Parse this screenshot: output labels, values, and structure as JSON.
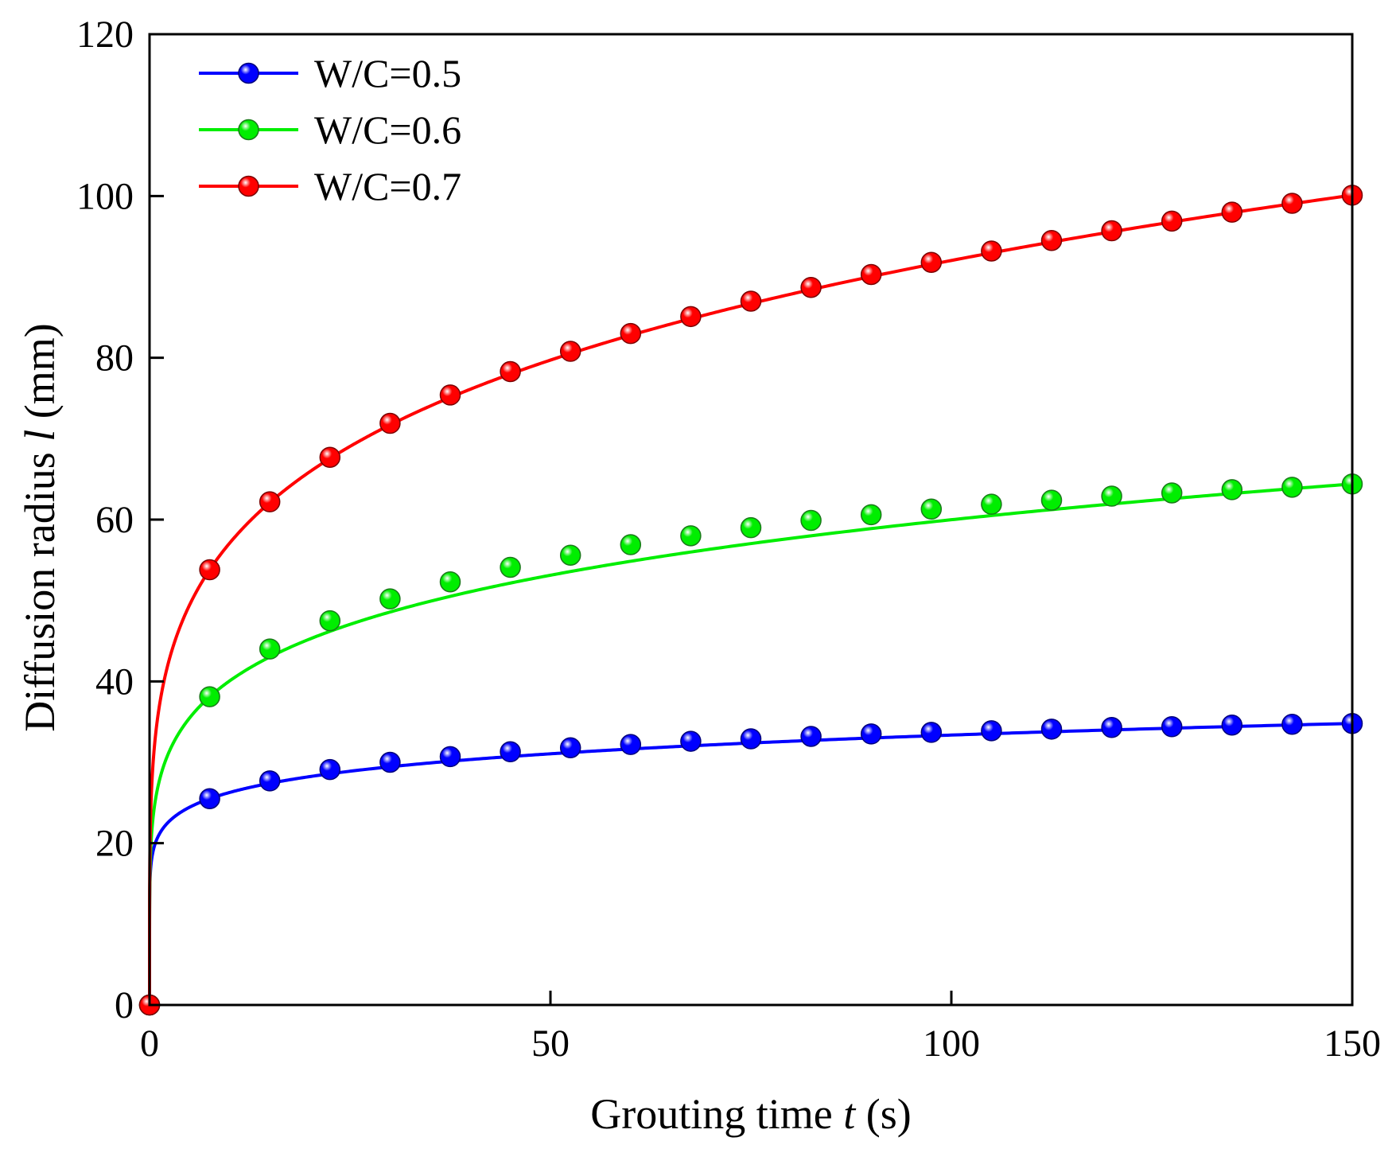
{
  "chart_data": {
    "type": "line",
    "title": "",
    "xlabel": {
      "prefix": "Grouting time ",
      "var": "t",
      "suffix": " (s)"
    },
    "ylabel": {
      "prefix": "Diffusion radius ",
      "var": "l",
      "suffix": " (mm)"
    },
    "xlim": [
      0,
      150
    ],
    "ylim": [
      0,
      120
    ],
    "xticks": [
      0,
      50,
      100,
      150
    ],
    "yticks": [
      0,
      20,
      40,
      60,
      80,
      100,
      120
    ],
    "grid": false,
    "legend_position": "top-left",
    "x": [
      0,
      7.5,
      15,
      22.5,
      30,
      37.5,
      45,
      52.5,
      60,
      67.5,
      75,
      82.5,
      90,
      97.5,
      105,
      112.5,
      120,
      127.5,
      135,
      142.5,
      150
    ],
    "series": [
      {
        "name": "W/C=0.5",
        "color": "#0000ff",
        "values": [
          0,
          25.5,
          27.7,
          29.1,
          30.0,
          30.7,
          31.3,
          31.8,
          32.2,
          32.6,
          32.9,
          33.2,
          33.5,
          33.7,
          33.9,
          34.1,
          34.3,
          34.4,
          34.6,
          34.7,
          34.8
        ]
      },
      {
        "name": "W/C=0.6",
        "color": "#00ee00",
        "values": [
          0,
          38.1,
          44.0,
          47.5,
          50.2,
          52.3,
          54.1,
          55.6,
          56.9,
          58.0,
          59.0,
          59.9,
          60.6,
          61.3,
          61.9,
          62.4,
          62.9,
          63.3,
          63.7,
          64.0,
          64.4
        ]
      },
      {
        "name": "W/C=0.7",
        "color": "#ff0000",
        "values": [
          0,
          53.8,
          62.2,
          67.7,
          71.9,
          75.4,
          78.3,
          80.8,
          83.0,
          85.1,
          87.0,
          88.7,
          90.3,
          91.8,
          93.2,
          94.5,
          95.7,
          96.9,
          98.0,
          99.1,
          100.1
        ]
      }
    ]
  }
}
